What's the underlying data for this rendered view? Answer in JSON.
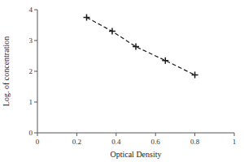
{
  "chart_data": {
    "type": "line",
    "x": [
      0.25,
      0.38,
      0.5,
      0.65,
      0.8
    ],
    "values": [
      3.75,
      3.3,
      2.8,
      2.35,
      1.88
    ],
    "xlabel": "Optical Density",
    "ylabel": "Log. of concentration",
    "xlim": [
      0,
      1
    ],
    "ylim": [
      0,
      4
    ],
    "xticks": [
      0,
      0.2,
      0.4,
      0.6,
      0.8,
      1
    ],
    "yticks": [
      0,
      1,
      2,
      3,
      4
    ],
    "color": "#1a1a1a",
    "marker": "plus",
    "line_style": "dashed",
    "grid": false
  }
}
